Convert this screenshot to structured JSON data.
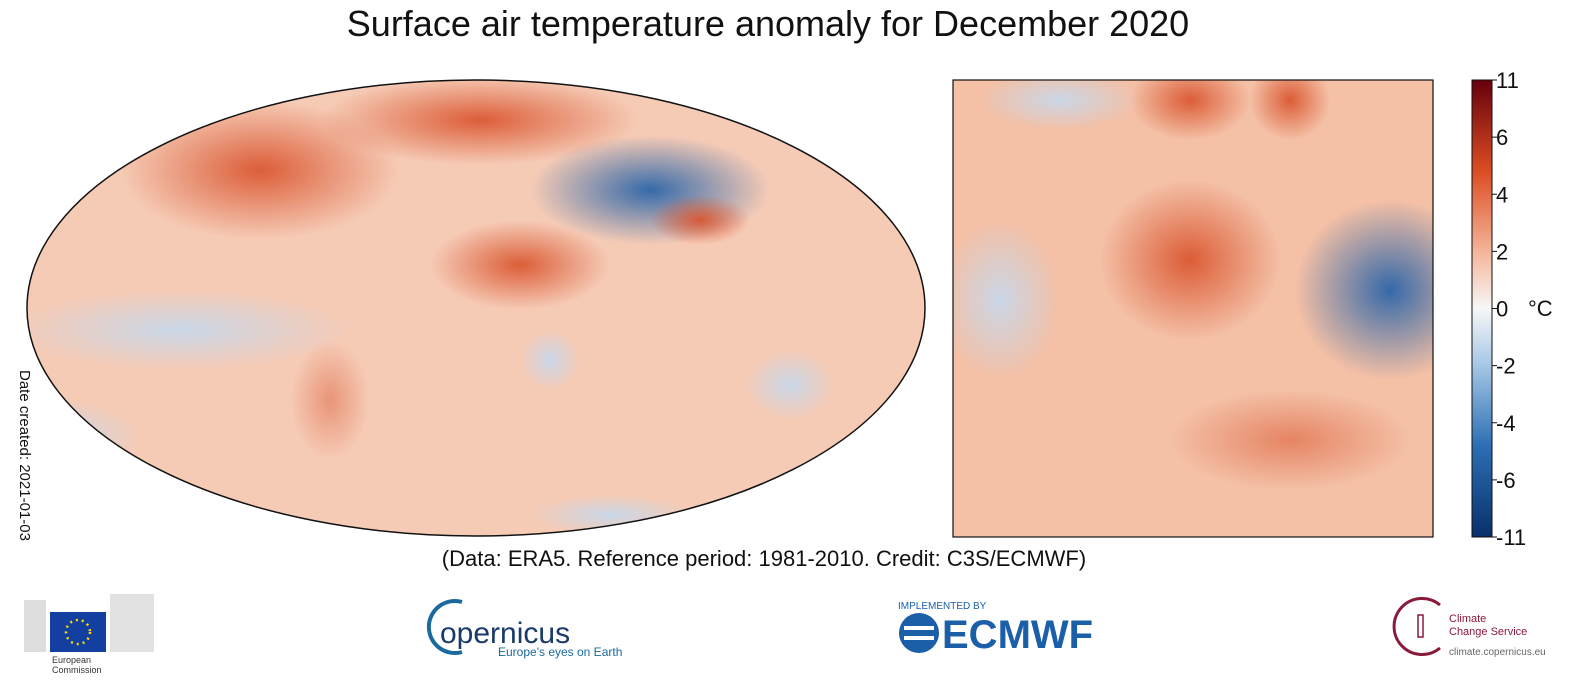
{
  "header": {
    "title": "Surface air temperature anomaly for December 2020"
  },
  "credit": "(Data: ERA5.  Reference period: 1981-2010.  Credit: C3S/ECMWF)",
  "date_created": "Date created: 2021-01-03",
  "colorbar": {
    "unit": "°C",
    "ticks": [
      11,
      6,
      4,
      2,
      0,
      -2,
      -4,
      -6,
      -11
    ]
  },
  "logos": {
    "european_commission": [
      "European",
      "Commission"
    ],
    "copernicus": {
      "name": "opernicus",
      "tagline": "Europe's eyes on Earth"
    },
    "ecmwf": {
      "note": "IMPLEMENTED BY",
      "name": "ECMWF"
    },
    "c3s": {
      "name": [
        "Climate",
        "Change Service"
      ],
      "url": "climate.copernicus.eu"
    }
  }
}
